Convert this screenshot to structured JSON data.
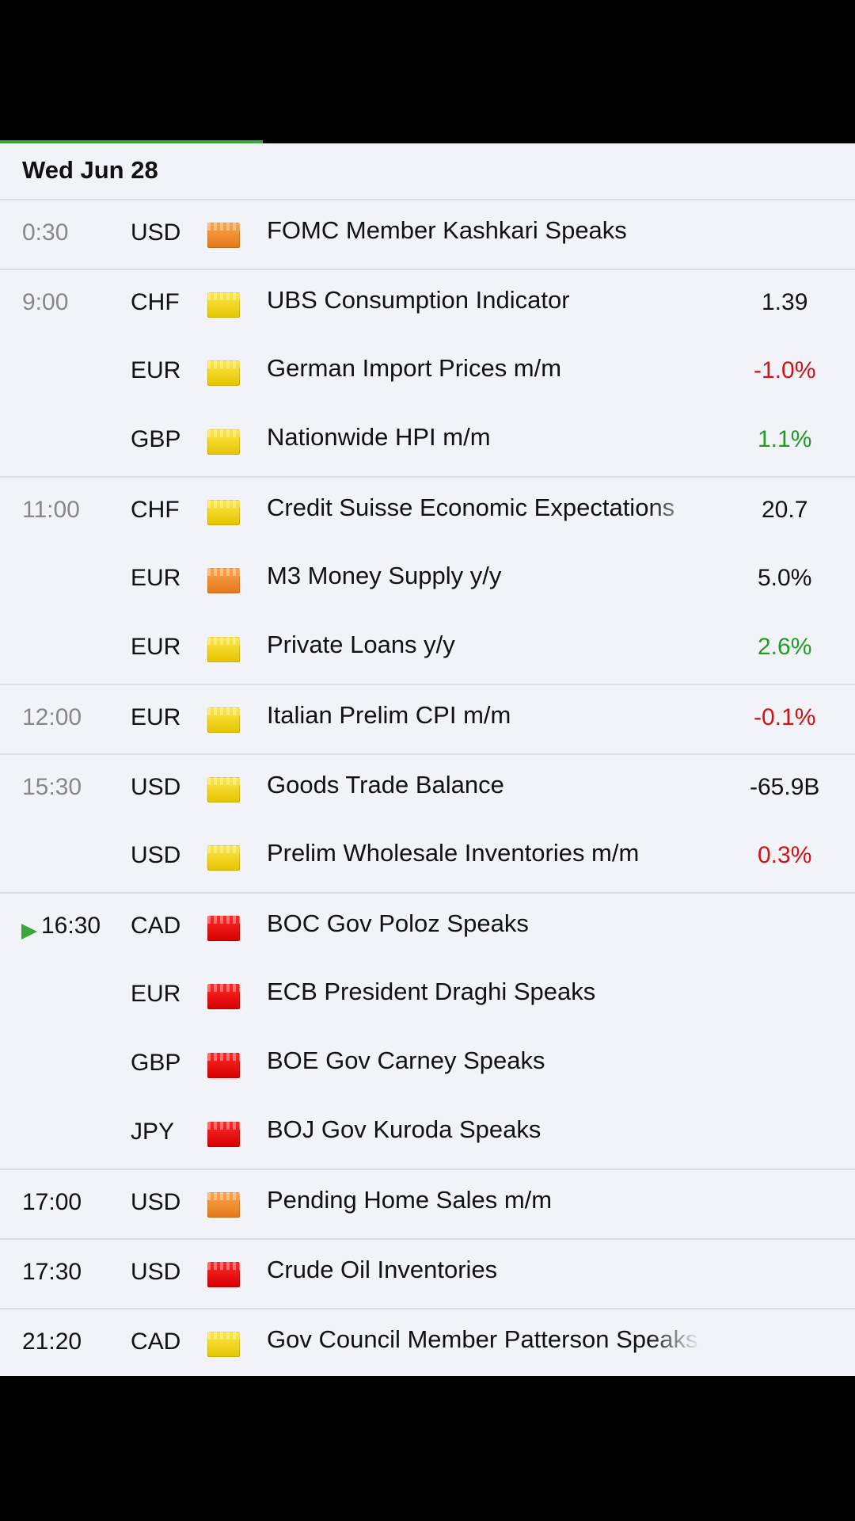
{
  "day": {
    "title": "Wed Jun 28"
  },
  "colors": {
    "better": "#1f9d1f",
    "worse": "#d11313",
    "low": "#ffe94a",
    "medium": "#ffa64d",
    "high": "#ff2b2b",
    "live": "#3aa63a"
  },
  "groups": [
    {
      "time": "0:30",
      "events": [
        {
          "currency": "USD",
          "impact": "medium",
          "title": "FOMC Member Kashkari Speaks",
          "actual": ""
        }
      ]
    },
    {
      "time": "9:00",
      "events": [
        {
          "currency": "CHF",
          "impact": "low",
          "title": "UBS Consumption Indicator",
          "actual": "1.39"
        },
        {
          "currency": "EUR",
          "impact": "low",
          "title": "German Import Prices m/m",
          "actual": "-1.0%",
          "actual_status": "worse"
        },
        {
          "currency": "GBP",
          "impact": "low",
          "title": "Nationwide HPI m/m",
          "actual": "1.1%",
          "actual_status": "better"
        }
      ]
    },
    {
      "time": "11:00",
      "events": [
        {
          "currency": "CHF",
          "impact": "low",
          "title": "Credit Suisse Economic Expectations",
          "actual": "20.7"
        },
        {
          "currency": "EUR",
          "impact": "medium",
          "title": "M3 Money Supply y/y",
          "actual": "5.0%"
        },
        {
          "currency": "EUR",
          "impact": "low",
          "title": "Private Loans y/y",
          "actual": "2.6%",
          "actual_status": "better"
        }
      ]
    },
    {
      "time": "12:00",
      "events": [
        {
          "currency": "EUR",
          "impact": "low",
          "title": "Italian Prelim CPI m/m",
          "actual": "-0.1%",
          "actual_status": "worse"
        }
      ]
    },
    {
      "time": "15:30",
      "events": [
        {
          "currency": "USD",
          "impact": "low",
          "title": "Goods Trade Balance",
          "actual": "-65.9B"
        },
        {
          "currency": "USD",
          "impact": "low",
          "title": "Prelim Wholesale Inventories m/m",
          "actual": "0.3%",
          "actual_status": "worse"
        }
      ]
    },
    {
      "time": "16:30",
      "live": true,
      "events": [
        {
          "currency": "CAD",
          "impact": "high",
          "title": "BOC Gov Poloz Speaks",
          "actual": ""
        },
        {
          "currency": "EUR",
          "impact": "high",
          "title": "ECB President Draghi Speaks",
          "actual": ""
        },
        {
          "currency": "GBP",
          "impact": "high",
          "title": "BOE Gov Carney Speaks",
          "actual": ""
        },
        {
          "currency": "JPY",
          "impact": "high",
          "title": "BOJ Gov Kuroda Speaks",
          "actual": ""
        }
      ]
    },
    {
      "time": "17:00",
      "upcoming": true,
      "events": [
        {
          "currency": "USD",
          "impact": "medium",
          "title": "Pending Home Sales m/m",
          "actual": ""
        }
      ]
    },
    {
      "time": "17:30",
      "upcoming": true,
      "events": [
        {
          "currency": "USD",
          "impact": "high",
          "title": "Crude Oil Inventories",
          "actual": ""
        }
      ]
    },
    {
      "time": "21:20",
      "upcoming": true,
      "events": [
        {
          "currency": "CAD",
          "impact": "low",
          "title": "Gov Council Member Patterson Speaks",
          "actual": ""
        }
      ]
    }
  ]
}
